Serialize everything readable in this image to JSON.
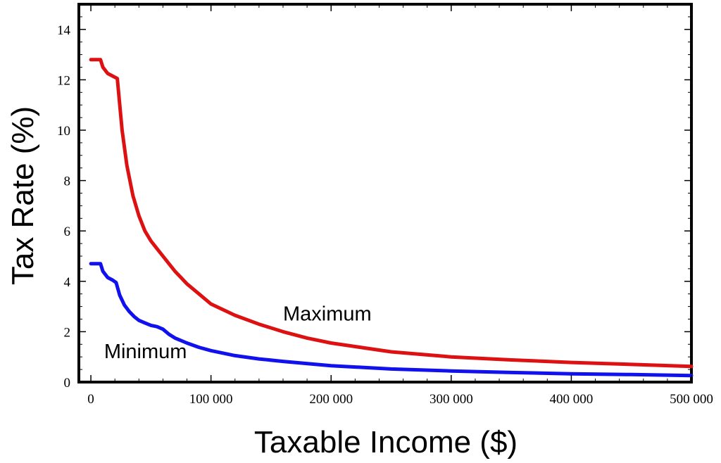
{
  "chart_data": {
    "type": "line",
    "title": "",
    "xlabel": "Taxable Income ($)",
    "ylabel": "Tax Rate (%)",
    "xlim": [
      -10000,
      500000
    ],
    "ylim": [
      0,
      15
    ],
    "x_ticks": [
      0,
      100000,
      200000,
      300000,
      400000,
      500000
    ],
    "x_tick_labels": [
      "0",
      "100 000",
      "200 000",
      "300 000",
      "400 000",
      "500 000"
    ],
    "y_ticks": [
      0,
      2,
      4,
      6,
      8,
      10,
      12,
      14
    ],
    "y_tick_labels": [
      "0",
      "2",
      "4",
      "6",
      "8",
      "10",
      "12",
      "14"
    ],
    "grid": false,
    "series": [
      {
        "name": "Maximum",
        "color": "#dd1111",
        "x": [
          0,
          8000,
          10000,
          14000,
          18000,
          22000,
          26000,
          30000,
          35000,
          40000,
          45000,
          50000,
          55000,
          60000,
          70000,
          80000,
          90000,
          100000,
          120000,
          140000,
          160000,
          180000,
          200000,
          250000,
          300000,
          350000,
          400000,
          450000,
          500000
        ],
        "y": [
          12.8,
          12.8,
          12.5,
          12.25,
          12.15,
          12.05,
          10.0,
          8.6,
          7.4,
          6.6,
          6.0,
          5.6,
          5.3,
          5.0,
          4.4,
          3.9,
          3.5,
          3.1,
          2.65,
          2.3,
          2.0,
          1.75,
          1.55,
          1.2,
          1.0,
          0.88,
          0.78,
          0.7,
          0.62
        ]
      },
      {
        "name": "Minimum",
        "color": "#1111ee",
        "x": [
          0,
          8000,
          10000,
          14000,
          18000,
          21000,
          24000,
          28000,
          32000,
          36000,
          40000,
          45000,
          50000,
          55000,
          60000,
          65000,
          70000,
          80000,
          90000,
          100000,
          120000,
          140000,
          160000,
          200000,
          250000,
          300000,
          350000,
          400000,
          450000,
          500000
        ],
        "y": [
          4.7,
          4.7,
          4.4,
          4.15,
          4.05,
          3.95,
          3.45,
          3.05,
          2.8,
          2.6,
          2.45,
          2.35,
          2.25,
          2.2,
          2.1,
          1.9,
          1.75,
          1.55,
          1.38,
          1.25,
          1.05,
          0.92,
          0.82,
          0.65,
          0.52,
          0.44,
          0.38,
          0.33,
          0.3,
          0.26
        ]
      }
    ],
    "annotations": [
      {
        "text": "Maximum",
        "x": 160000,
        "y": 2.45
      },
      {
        "text": "Minimum",
        "x": 11000,
        "y": 0.95
      }
    ]
  }
}
